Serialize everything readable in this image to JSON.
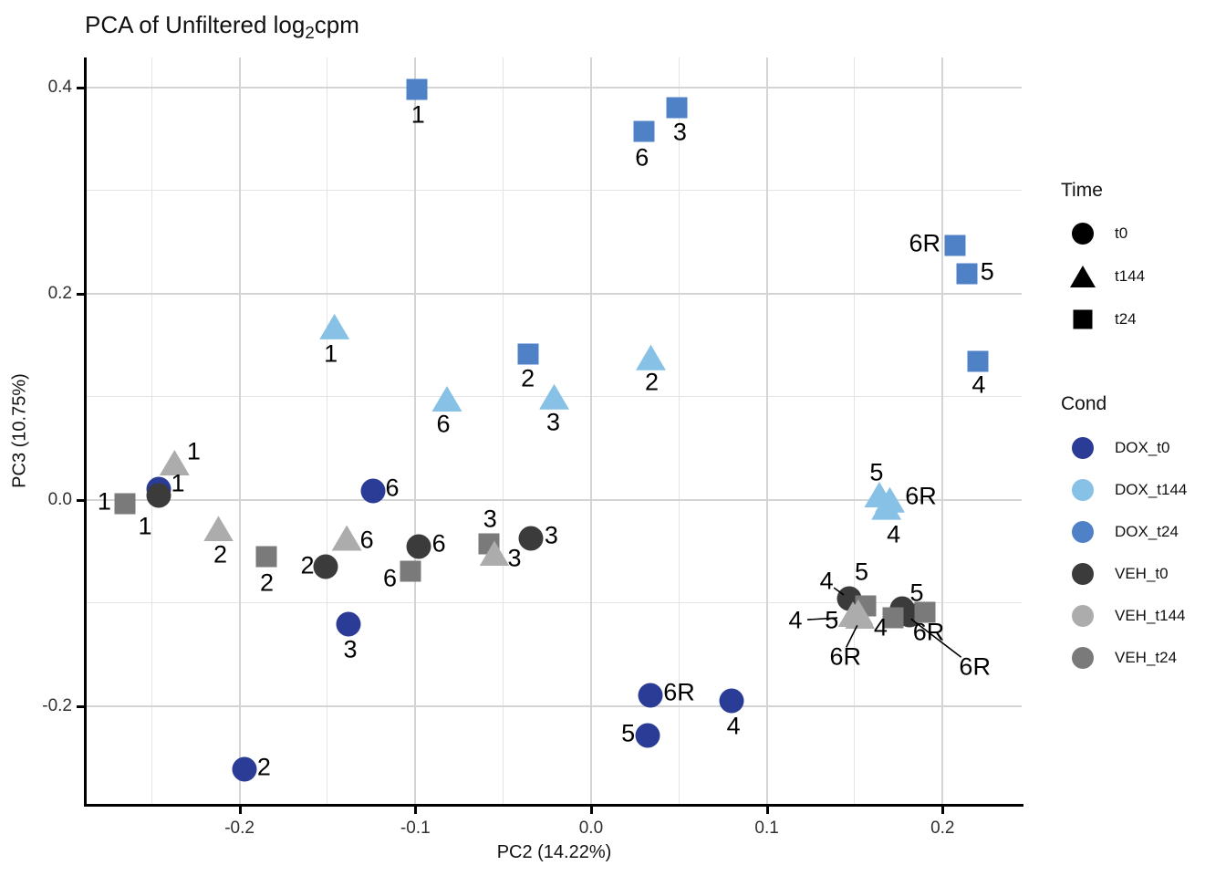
{
  "title": {
    "prefix": "PCA of Unfiltered log",
    "subscript": "2",
    "suffix": "cpm"
  },
  "chart_data": {
    "type": "scatter",
    "xlabel": "PC2 (14.22%)",
    "ylabel": "PC3 (10.75%)",
    "grid": true,
    "x_axis": {
      "min": -0.287,
      "max": 0.245,
      "major_ticks": [
        {
          "v": -0.2,
          "t": "-0.2"
        },
        {
          "v": -0.1,
          "t": "-0.1"
        },
        {
          "v": 0.0,
          "t": "0.0"
        },
        {
          "v": 0.1,
          "t": "0.1"
        },
        {
          "v": 0.2,
          "t": "0.2"
        }
      ],
      "minor_ticks": [
        -0.25,
        -0.15,
        -0.05,
        0.05,
        0.15
      ]
    },
    "y_axis": {
      "min": -0.295,
      "max": 0.429,
      "major_ticks": [
        {
          "v": -0.2,
          "t": "-0.2"
        },
        {
          "v": 0.0,
          "t": "0.0"
        },
        {
          "v": 0.2,
          "t": "0.2"
        },
        {
          "v": 0.4,
          "t": "0.4"
        }
      ],
      "minor_ticks": [
        -0.1,
        0.1,
        0.3
      ]
    },
    "series": [
      {
        "name": "DOX_t0",
        "shape": "circle",
        "color": "#2A3C96",
        "points": [
          {
            "x": -0.246,
            "y": 0.01,
            "label": "1",
            "dx": 21,
            "dy": -6
          },
          {
            "x": -0.197,
            "y": -0.261,
            "label": "2",
            "dx": 21,
            "dy": -2
          },
          {
            "x": -0.138,
            "y": -0.121,
            "label": "3",
            "dx": 2,
            "dy": 28
          },
          {
            "x": 0.08,
            "y": -0.195,
            "label": "4",
            "dx": 2,
            "dy": 28
          },
          {
            "x": 0.032,
            "y": -0.229,
            "label": "5",
            "dx": -21,
            "dy": -2
          },
          {
            "x": -0.124,
            "y": 0.009,
            "label": "6",
            "dx": 21,
            "dy": -3
          },
          {
            "x": 0.034,
            "y": -0.19,
            "label": "6R",
            "dx": 31,
            "dy": -3
          }
        ]
      },
      {
        "name": "VEH_t0",
        "shape": "circle",
        "color": "#3B3B3B",
        "points": [
          {
            "x": -0.246,
            "y": 0.004,
            "label": "1",
            "dx": -15,
            "dy": 34
          },
          {
            "x": -0.151,
            "y": -0.065,
            "label": "2",
            "dx": -20,
            "dy": -1
          },
          {
            "x": -0.034,
            "y": -0.037,
            "label": "3",
            "dx": 22,
            "dy": -3
          },
          {
            "x": 0.147,
            "y": -0.096,
            "label": "4",
            "dx": -25,
            "dy": -19,
            "leader": [
              -17,
              -12,
              -6,
              -4
            ]
          },
          {
            "x": 0.177,
            "y": -0.106,
            "label": "5",
            "dx": 16,
            "dy": -17
          },
          {
            "x": -0.098,
            "y": -0.045,
            "label": "6",
            "dx": 22,
            "dy": -3
          },
          {
            "x": 0.181,
            "y": -0.112,
            "label": "6R",
            "dx": 72,
            "dy": 57,
            "leader": [
              57,
              46,
              2,
              4
            ]
          }
        ]
      },
      {
        "name": "DOX_t24",
        "shape": "square",
        "color": "#4F81C7",
        "points": [
          {
            "x": -0.099,
            "y": 0.398,
            "label": "1",
            "dx": 1,
            "dy": 28
          },
          {
            "x": -0.036,
            "y": 0.141,
            "label": "2",
            "dx": 0,
            "dy": 27
          },
          {
            "x": 0.049,
            "y": 0.38,
            "label": "3",
            "dx": 3,
            "dy": 27
          },
          {
            "x": 0.22,
            "y": 0.134,
            "label": "4",
            "dx": 1,
            "dy": 26
          },
          {
            "x": 0.214,
            "y": 0.219,
            "label": "5",
            "dx": 22,
            "dy": -2
          },
          {
            "x": 0.03,
            "y": 0.357,
            "label": "6",
            "dx": -2,
            "dy": 29
          },
          {
            "x": 0.207,
            "y": 0.247,
            "label": "6R",
            "dx": -33,
            "dy": -2
          }
        ]
      },
      {
        "name": "VEH_t24",
        "shape": "square",
        "color": "#7A7A7A",
        "points": [
          {
            "x": -0.265,
            "y": -0.004,
            "label": "1",
            "dx": -23,
            "dy": -2
          },
          {
            "x": -0.185,
            "y": -0.055,
            "label": "2",
            "dx": 1,
            "dy": 29
          },
          {
            "x": -0.058,
            "y": -0.043,
            "label": "3",
            "dx": 1,
            "dy": -27
          },
          {
            "x": 0.172,
            "y": -0.114,
            "label": "4",
            "dx": -14,
            "dy": 11
          },
          {
            "x": 0.156,
            "y": -0.103,
            "label": "5",
            "dx": -4,
            "dy": -37
          },
          {
            "x": -0.103,
            "y": -0.069,
            "label": "6",
            "dx": -22,
            "dy": 8
          },
          {
            "x": 0.19,
            "y": -0.109,
            "label": "6R",
            "dx": 4,
            "dy": 22
          }
        ]
      },
      {
        "name": "DOX_t144",
        "shape": "triangle",
        "color": "#87C1E5",
        "points": [
          {
            "x": -0.146,
            "y": 0.168,
            "label": "1",
            "dx": -4,
            "dy": 30
          },
          {
            "x": 0.034,
            "y": 0.138,
            "label": "2",
            "dx": 1,
            "dy": 27
          },
          {
            "x": -0.021,
            "y": 0.1,
            "label": "3",
            "dx": -1,
            "dy": 28
          },
          {
            "x": 0.168,
            "y": -0.007,
            "label": "4",
            "dx": 8,
            "dy": 30
          },
          {
            "x": 0.164,
            "y": 0.005,
            "label": "5",
            "dx": -3,
            "dy": -24
          },
          {
            "x": -0.082,
            "y": 0.098,
            "label": "6",
            "dx": -4,
            "dy": 28
          },
          {
            "x": 0.17,
            "y": 0.0,
            "label": "6R",
            "dx": 34,
            "dy": -4
          }
        ]
      },
      {
        "name": "VEH_t144",
        "shape": "triangle",
        "color": "#ACACAC",
        "points": [
          {
            "x": -0.237,
            "y": 0.036,
            "label": "1",
            "dx": 21,
            "dy": -12
          },
          {
            "x": -0.212,
            "y": -0.028,
            "label": "2",
            "dx": 2,
            "dy": 29
          },
          {
            "x": -0.055,
            "y": -0.052,
            "label": "3",
            "dx": 22,
            "dy": 6
          },
          {
            "x": 0.149,
            "y": -0.111,
            "label": "4",
            "dx": -63,
            "dy": 7,
            "leader": [
              -50,
              6,
              -17,
              4
            ]
          },
          {
            "x": 0.152,
            "y": -0.109,
            "label": "5",
            "dx": -29,
            "dy": 9
          },
          {
            "x": -0.139,
            "y": -0.037,
            "label": "6",
            "dx": 22,
            "dy": 2
          },
          {
            "x": 0.153,
            "y": -0.113,
            "label": "6R",
            "dx": -16,
            "dy": 45,
            "leader": [
              -15,
              34,
              -3,
              10
            ]
          }
        ]
      }
    ]
  },
  "legend_time": {
    "title": "Time",
    "items": [
      {
        "label": "t0",
        "shape": "circle"
      },
      {
        "label": "t144",
        "shape": "triangle"
      },
      {
        "label": "t24",
        "shape": "square"
      }
    ]
  },
  "legend_cond": {
    "title": "Cond",
    "items": [
      {
        "label": "DOX_t0",
        "color": "#2A3C96"
      },
      {
        "label": "DOX_t144",
        "color": "#87C1E5"
      },
      {
        "label": "DOX_t24",
        "color": "#4F81C7"
      },
      {
        "label": "VEH_t0",
        "color": "#3B3B3B"
      },
      {
        "label": "VEH_t144",
        "color": "#ACACAC"
      },
      {
        "label": "VEH_t24",
        "color": "#7A7A7A"
      }
    ]
  },
  "colors": {
    "grid_major": "#D4D4D4",
    "grid_minor": "#E4E4E4",
    "axis_line": "#000000",
    "point_label": "#000000"
  }
}
